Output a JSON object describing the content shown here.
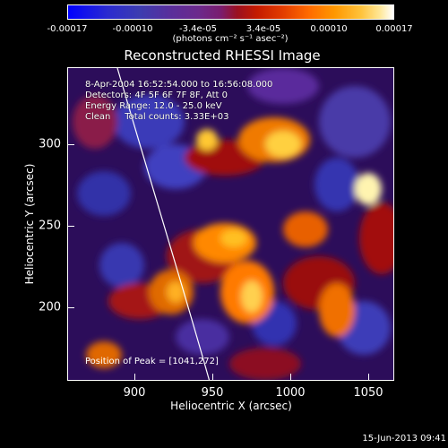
{
  "colorbar": {
    "ticks": [
      "-0.00017",
      "-0.00010",
      "-3.4e-05",
      "3.4e-05",
      "0.00010",
      "0.00017"
    ],
    "units": "(photons cm⁻² s⁻¹ asec⁻²)"
  },
  "title": "Reconstructed RHESSI Image",
  "info": {
    "time": "8-Apr-2004 16:52:54.000 to 16:56:08.000",
    "detectors": "Detectors: 4F 5F 6F 7F 8F, Att 0",
    "energy": "Energy Range: 12.0 - 25.0 keV",
    "method": "Clean     Total counts: 3.33E+03"
  },
  "peak": "Position of Peak = [1041,272]",
  "x_axis": {
    "label": "Heliocentric X (arcsec)",
    "ticks": [
      "900",
      "950",
      "1000",
      "1050"
    ]
  },
  "y_axis": {
    "label": "Heliocentric Y (arcsec)",
    "ticks": [
      "300",
      "250",
      "200"
    ]
  },
  "timestamp": "15-Jun-2013 09:41",
  "colors": {
    "background": "#000000",
    "foreground": "#ffffff",
    "image_base": "#2c0d5a"
  }
}
